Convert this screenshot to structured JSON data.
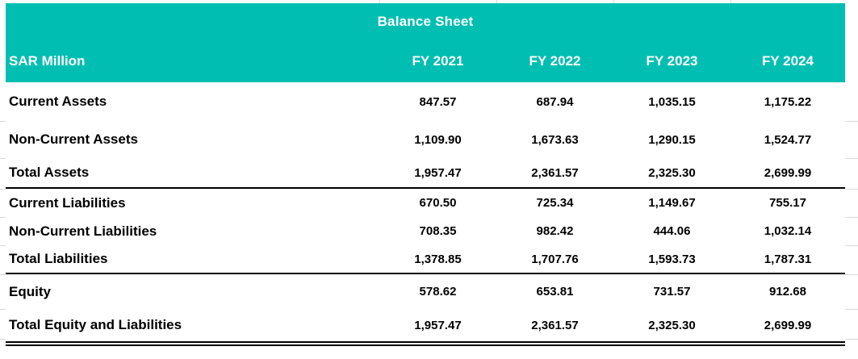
{
  "table": {
    "title": "Balance Sheet",
    "unit_label": "SAR Million",
    "columns": [
      "FY 2021",
      "FY 2022",
      "FY 2023",
      "FY 2024"
    ],
    "rows": [
      {
        "label": "Current Assets",
        "values": [
          "847.57",
          "687.94",
          "1,035.15",
          "1,175.22"
        ],
        "section_end": false
      },
      {
        "label": "Non-Current Assets",
        "values": [
          "1,109.90",
          "1,673.63",
          "1,290.15",
          "1,524.77"
        ],
        "section_end": false
      },
      {
        "label": "Total Assets",
        "values": [
          "1,957.47",
          "2,361.57",
          "2,325.30",
          "2,699.99"
        ],
        "section_end": true
      },
      {
        "label": "Current Liabilities",
        "values": [
          "670.50",
          "725.34",
          "1,149.67",
          "755.17"
        ],
        "section_end": false
      },
      {
        "label": "Non-Current Liabilities",
        "values": [
          "708.35",
          "982.42",
          "444.06",
          "1,032.14"
        ],
        "section_end": false
      },
      {
        "label": "Total Liabilities",
        "values": [
          "1,378.85",
          "1,707.76",
          "1,593.73",
          "1,787.31"
        ],
        "section_end": true
      },
      {
        "label": "Equity",
        "values": [
          "578.62",
          "653.81",
          "731.57",
          "912.68"
        ],
        "section_end": false
      },
      {
        "label": "Total Equity and Liabilities",
        "values": [
          "1,957.47",
          "2,361.57",
          "2,325.30",
          "2,699.99"
        ],
        "section_end": false
      }
    ]
  },
  "colors": {
    "header_teal": "#00bfb2",
    "header_text": "#ffffff",
    "body_text": "#000000",
    "section_border": "#000000",
    "gridline": "#d9d9d9"
  }
}
